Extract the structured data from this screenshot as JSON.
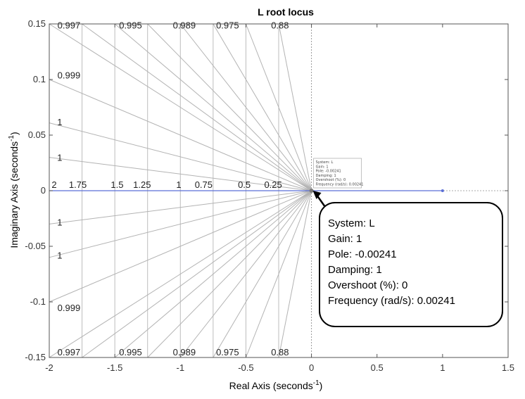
{
  "chart_data": {
    "type": "scatter",
    "title": "L root locus",
    "xlabel": "Real Axis (seconds",
    "ylabel": "Imaginary Axis (seconds",
    "label_exponent": "-1",
    "xlim": [
      -2,
      1.5
    ],
    "ylim": [
      -0.15,
      0.15
    ],
    "x_ticks": [
      "-2",
      "-1.5",
      "-1",
      "-0.5",
      "0",
      "0.5",
      "1",
      "1.5"
    ],
    "y_ticks": [
      "0.15",
      "0.1",
      "0.05",
      "0",
      "-0.05",
      "-0.1",
      "-0.15"
    ],
    "series": [
      {
        "x": [
          -2,
          1
        ],
        "y": [
          0,
          0
        ],
        "color": "#5b6fd6"
      }
    ],
    "damping_labels": [
      {
        "text": "0.997",
        "x": -1.85,
        "y": 0.148
      },
      {
        "text": "0.995",
        "x": -1.38,
        "y": 0.148
      },
      {
        "text": "0.989",
        "x": -0.97,
        "y": 0.148
      },
      {
        "text": "0.975",
        "x": -0.64,
        "y": 0.148
      },
      {
        "text": "0.88",
        "x": -0.24,
        "y": 0.148
      },
      {
        "text": "0.999",
        "x": -1.85,
        "y": 0.103
      },
      {
        "text": "1",
        "x": -1.92,
        "y": 0.061
      },
      {
        "text": "1",
        "x": -1.92,
        "y": 0.029
      },
      {
        "text": "1",
        "x": -1.92,
        "y": -0.029
      },
      {
        "text": "1",
        "x": -1.92,
        "y": -0.059
      },
      {
        "text": "0.999",
        "x": -1.85,
        "y": -0.106
      },
      {
        "text": "0.997",
        "x": -1.85,
        "y": -0.146
      },
      {
        "text": "0.995",
        "x": -1.38,
        "y": -0.146
      },
      {
        "text": "0.989",
        "x": -0.97,
        "y": -0.146
      },
      {
        "text": "0.975",
        "x": -0.64,
        "y": -0.146
      },
      {
        "text": "0.88",
        "x": -0.24,
        "y": -0.146
      }
    ],
    "frequency_labels": [
      {
        "text": "2",
        "x": -2.0
      },
      {
        "text": "1.75",
        "x": -1.82
      },
      {
        "text": "1.5",
        "x": -1.52
      },
      {
        "text": "1.25",
        "x": -1.33
      },
      {
        "text": "1",
        "x": -1.05
      },
      {
        "text": "0.75",
        "x": -0.86
      },
      {
        "text": "0.5",
        "x": -0.55
      },
      {
        "text": "0.25",
        "x": -0.33
      }
    ],
    "datatip_small": [
      "System: L",
      "Gain: 1",
      "Pole: -0.00241",
      "Damping: 1",
      "Overshoot (%): 0",
      "Frequency (rad/s): 0.00241"
    ],
    "callout": [
      "System: L",
      "Gain: 1",
      "Pole: -0.00241",
      "Damping: 1",
      "Overshoot (%): 0",
      "Frequency (rad/s): 0.00241"
    ],
    "grid": true
  }
}
